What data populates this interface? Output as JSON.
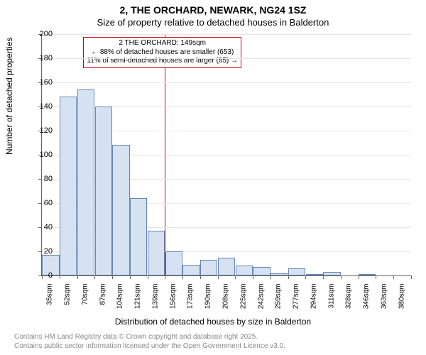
{
  "title": {
    "line1": "2, THE ORCHARD, NEWARK, NG24 1SZ",
    "line2": "Size of property relative to detached houses in Balderton"
  },
  "axes": {
    "ylabel": "Number of detached properties",
    "xlabel": "Distribution of detached houses by size in Balderton",
    "ymax": 200,
    "ytick_step": 20,
    "yticks": [
      0,
      20,
      40,
      60,
      80,
      100,
      120,
      140,
      160,
      180,
      200
    ]
  },
  "annotation": {
    "line1": "2 THE ORCHARD: 149sqm",
    "line2": "← 88% of detached houses are smaller (653)",
    "line3": "11% of semi-detached houses are larger (85) →",
    "ref_x_index": 7
  },
  "style": {
    "bar_fill": "#d6e2f2",
    "bar_stroke": "#6687b3",
    "grid_color": "#e6e6e6",
    "axis_color": "#666666",
    "refline_color": "#cc0000",
    "annotation_border": "#cc0000",
    "background": "#ffffff",
    "title_fontsize": 14,
    "subtitle_fontsize": 13,
    "tick_fontsize": 11,
    "xtick_fontsize": 10,
    "label_fontsize": 12,
    "footer_color": "#888888"
  },
  "bars": {
    "labels": [
      "35sqm",
      "52sqm",
      "70sqm",
      "87sqm",
      "104sqm",
      "121sqm",
      "139sqm",
      "156sqm",
      "173sqm",
      "190sqm",
      "208sqm",
      "225sqm",
      "242sqm",
      "259sqm",
      "277sqm",
      "294sqm",
      "311sqm",
      "328sqm",
      "346sqm",
      "363sqm",
      "380sqm"
    ],
    "values": [
      17,
      148,
      154,
      140,
      108,
      64,
      37,
      20,
      9,
      13,
      15,
      8,
      7,
      2,
      6,
      1,
      3,
      0,
      1,
      0,
      0
    ]
  },
  "footer": {
    "line1": "Contains HM Land Registry data © Crown copyright and database right 2025.",
    "line2": "Contains public sector information licensed under the Open Government Licence v3.0."
  }
}
